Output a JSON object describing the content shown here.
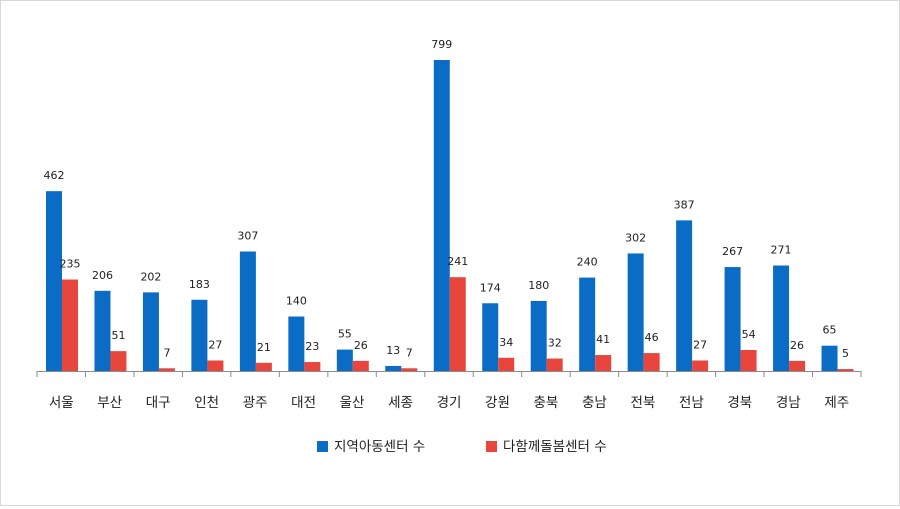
{
  "chart_data": {
    "type": "bar",
    "title": "",
    "xlabel": "",
    "ylabel": "",
    "ylim": [
      0,
      800
    ],
    "grid": false,
    "legend_position": "bottom",
    "categories": [
      "서울",
      "부산",
      "대구",
      "인천",
      "광주",
      "대전",
      "울산",
      "세종",
      "경기",
      "강원",
      "충북",
      "충남",
      "전북",
      "전남",
      "경북",
      "경남",
      "제주"
    ],
    "series": [
      {
        "name": "지역아동센터 수",
        "color": "#0A6CC4",
        "values": [
          462,
          206,
          202,
          183,
          307,
          140,
          55,
          13,
          799,
          174,
          180,
          240,
          302,
          387,
          267,
          271,
          65
        ]
      },
      {
        "name": "다함께돌봄센터 수",
        "color": "#E8463D",
        "values": [
          235,
          51,
          7,
          27,
          21,
          23,
          26,
          7,
          241,
          34,
          32,
          41,
          46,
          27,
          54,
          26,
          5
        ]
      }
    ]
  }
}
